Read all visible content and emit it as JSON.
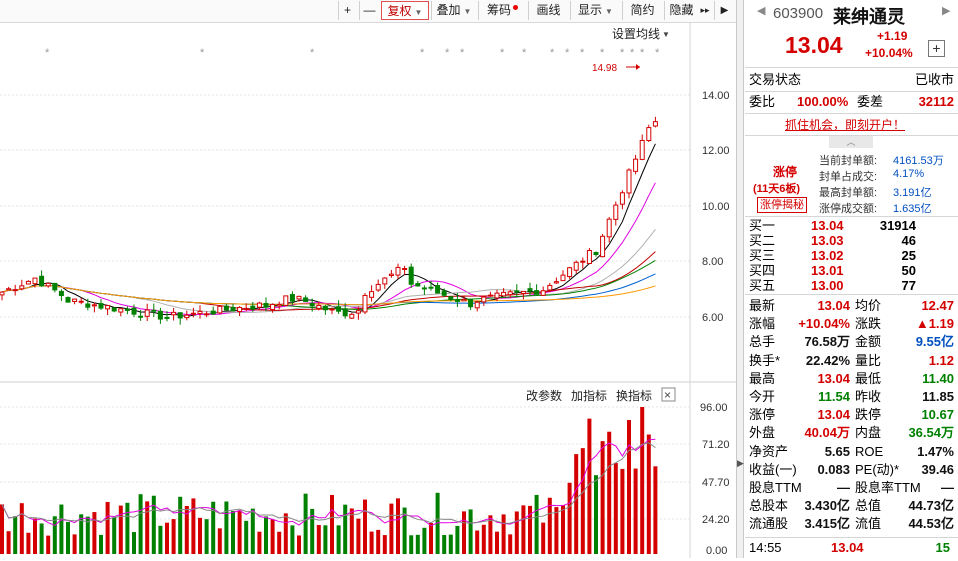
{
  "toolbar": {
    "plus": "+",
    "minus": "—",
    "fuquan": "复权",
    "diejia": "叠加",
    "chouma": "筹码",
    "huaxian": "画线",
    "xianshi": "显示",
    "jianyue": "简约",
    "yincang": "隐藏",
    "more": "▸▸"
  },
  "price_chart": {
    "settings_label": "设置均线",
    "high_marker": "14.98",
    "y_ticks": [
      "14.00",
      "12.00",
      "10.00",
      "8.00",
      "6.00"
    ]
  },
  "volume_chart": {
    "tools": [
      "改参数",
      "加指标",
      "换指标"
    ],
    "close_glyph": "×",
    "y_ticks": [
      "96.00",
      "71.20",
      "47.70",
      "24.20",
      "0.00"
    ]
  },
  "stock": {
    "code": "603900",
    "name": "莱绅通灵",
    "price": "13.04",
    "change": "+1.19",
    "change_pct": "+10.04%",
    "add_btn": "+"
  },
  "status": {
    "label": "交易状态",
    "value": "已收市"
  },
  "weibi": {
    "label1": "委比",
    "value1": "100.00%",
    "label2": "委差",
    "value2": "32112"
  },
  "promo": "抓住机会，即刻开户！",
  "limit_up": {
    "title": "涨停",
    "days": "(11天6板)",
    "reveal_btn": "涨停揭秘",
    "items": [
      {
        "label": "当前封单额:",
        "value": "4161.53万"
      },
      {
        "label": "封单占成交:",
        "value": "4.17%"
      },
      {
        "label": "最高封单额:",
        "value": "3.191亿"
      },
      {
        "label": "涨停成交额:",
        "value": "1.635亿"
      }
    ]
  },
  "bids": [
    {
      "label": "买一",
      "price": "13.04",
      "vol": "31914"
    },
    {
      "label": "买二",
      "price": "13.03",
      "vol": "46"
    },
    {
      "label": "买三",
      "price": "13.02",
      "vol": "25"
    },
    {
      "label": "买四",
      "price": "13.01",
      "vol": "50"
    },
    {
      "label": "买五",
      "price": "13.00",
      "vol": "77"
    }
  ],
  "quote": [
    {
      "l1": "最新",
      "v1": "13.04",
      "c1": "red",
      "l2": "均价",
      "v2": "12.47",
      "c2": "red"
    },
    {
      "l1": "涨幅",
      "v1": "+10.04%",
      "c1": "red",
      "l2": "涨跌",
      "v2": "▲1.19",
      "c2": "red"
    },
    {
      "l1": "总手",
      "v1": "76.58万",
      "c1": "black",
      "l2": "金额",
      "v2": "9.55亿",
      "c2": "blue"
    },
    {
      "l1": "换手*",
      "v1": "22.42%",
      "c1": "black",
      "l2": "量比",
      "v2": "1.12",
      "c2": "red"
    },
    {
      "l1": "最高",
      "v1": "13.04",
      "c1": "red",
      "l2": "最低",
      "v2": "11.40",
      "c2": "green"
    },
    {
      "l1": "今开",
      "v1": "11.54",
      "c1": "green",
      "l2": "昨收",
      "v2": "11.85",
      "c2": "black"
    },
    {
      "l1": "涨停",
      "v1": "13.04",
      "c1": "red",
      "l2": "跌停",
      "v2": "10.67",
      "c2": "green"
    },
    {
      "l1": "外盘",
      "v1": "40.04万",
      "c1": "red",
      "l2": "内盘",
      "v2": "36.54万",
      "c2": "green"
    },
    {
      "l1": "净资产",
      "v1": "5.65",
      "c1": "black",
      "l2": "ROE",
      "v2": "1.47%",
      "c2": "black"
    },
    {
      "l1": "收益(一)",
      "v1": "0.083",
      "c1": "black",
      "l2": "PE(动)*",
      "v2": "39.46",
      "c2": "black"
    },
    {
      "l1": "股息TTM",
      "v1": "—",
      "c1": "black",
      "l2": "股息率TTM",
      "v2": "—",
      "c2": "black"
    },
    {
      "l1": "总股本",
      "v1": "3.430亿",
      "c1": "black",
      "l2": "总值",
      "v2": "44.73亿",
      "c2": "black"
    },
    {
      "l1": "流通股",
      "v1": "3.415亿",
      "c1": "black",
      "l2": "流值",
      "v2": "44.53亿",
      "c2": "black"
    }
  ],
  "last_trade": {
    "time": "14:55",
    "price": "13.04",
    "vol": "15"
  },
  "colors": {
    "up": "#d40000",
    "down": "#008000",
    "ma5": "#000000",
    "ma10": "#e000e0",
    "ma20": "#b0b0b0",
    "ma30": "#c00000",
    "ma60": "#008000",
    "ma120": "#0060d0",
    "ma250": "#ff9900"
  }
}
